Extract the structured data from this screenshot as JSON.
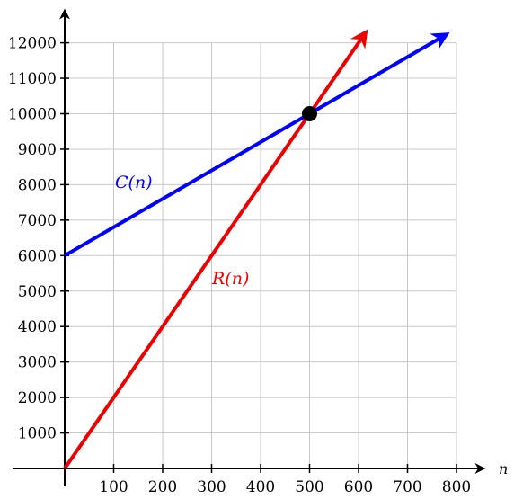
{
  "chart_data": {
    "type": "line",
    "title": "",
    "xlabel": "n",
    "ylabel": "",
    "xlim": [
      0,
      800
    ],
    "ylim": [
      0,
      12000
    ],
    "grid": true,
    "x_ticks": [
      100,
      200,
      300,
      400,
      500,
      600,
      700,
      800
    ],
    "x_tick_labels": [
      "100",
      "200",
      "300",
      "400",
      "500",
      "600",
      "700",
      "800"
    ],
    "y_ticks": [
      1000,
      2000,
      3000,
      4000,
      5000,
      6000,
      7000,
      8000,
      9000,
      10000,
      11000,
      12000
    ],
    "y_tick_labels": [
      "1000",
      "2000",
      "3000",
      "4000",
      "5000",
      "6000",
      "7000",
      "8000",
      "9000",
      "10000",
      "11000",
      "12000"
    ],
    "series": [
      {
        "name": "C(n)",
        "color": "#0000ff",
        "x": [
          0,
          500,
          780
        ],
        "y": [
          6000,
          10000,
          12240
        ]
      },
      {
        "name": "R(n)",
        "color": "#ee0000",
        "x": [
          0,
          500,
          615
        ],
        "y": [
          0,
          10000,
          12300
        ]
      }
    ],
    "annotations": [
      {
        "type": "point",
        "x": 500,
        "y": 10000,
        "color": "#000000"
      }
    ]
  }
}
